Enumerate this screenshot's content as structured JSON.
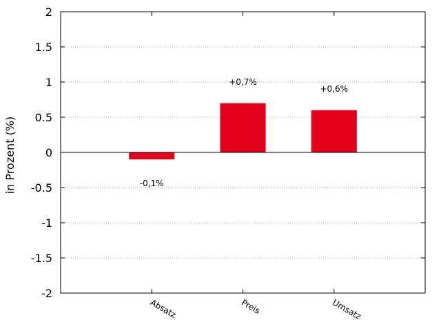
{
  "chart_data": {
    "type": "bar",
    "title": "",
    "xlabel": "",
    "ylabel": "in Prozent (%)",
    "categories": [
      "Absatz",
      "Preis",
      "Umsatz"
    ],
    "values": [
      -0.1,
      0.7,
      0.6
    ],
    "data_labels": [
      "-0,1%",
      "+0,7%",
      "+0,6%"
    ],
    "ylim": [
      -2,
      2
    ],
    "yticks": [
      -2,
      -1.5,
      -1,
      -0.5,
      0,
      0.5,
      1,
      1.5,
      2
    ],
    "ytick_labels": [
      "-2",
      "-1.5",
      "-1",
      "-0.5",
      "0",
      "0.5",
      "1",
      "1.5",
      "2"
    ],
    "xlim": [
      0,
      4
    ],
    "category_positions": [
      1,
      2,
      3
    ],
    "bar_color": "#e2001a",
    "grid": "y dotted",
    "legend": "none"
  }
}
